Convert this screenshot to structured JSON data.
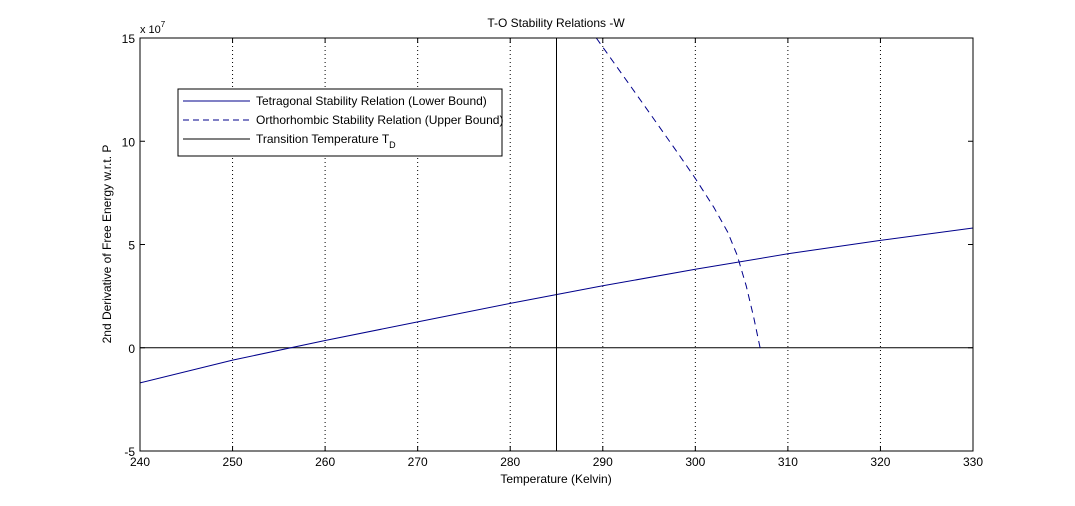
{
  "chart_data": {
    "type": "line",
    "title": "T-O Stability Relations -W",
    "xlabel": "Temperature (Kelvin)",
    "ylabel": "2nd Derivative of Free Energy w.r.t. P",
    "y_multiplier": {
      "base": "x 10",
      "exponent": "7"
    },
    "xlim": [
      240,
      330
    ],
    "ylim": [
      -5,
      15
    ],
    "x_ticks": [
      "240",
      "250",
      "260",
      "270",
      "280",
      "290",
      "300",
      "310",
      "320",
      "330"
    ],
    "y_ticks": [
      "-5",
      "0",
      "5",
      "10",
      "15"
    ],
    "x_grid": true,
    "y_grid": false,
    "legend_position": "top-left",
    "series": [
      {
        "name": "Tetragonal Stability Relation (Lower Bound)",
        "style": "solid",
        "color": "#00008b",
        "x": [
          240,
          250,
          260,
          270,
          280,
          290,
          300,
          310,
          320,
          330
        ],
        "y": [
          -1.7,
          -0.6,
          0.35,
          1.25,
          2.15,
          3.0,
          3.8,
          4.55,
          5.2,
          5.8
        ]
      },
      {
        "name": "Orthorhombic Stability Relation (Upper Bound)",
        "style": "dashed",
        "color": "#00008b",
        "x": [
          289.3,
          292,
          295,
          298,
          300,
          302,
          303.5,
          304.5,
          305.5,
          306.3,
          307
        ],
        "y": [
          15,
          13.3,
          11.4,
          9.5,
          8.2,
          6.8,
          5.6,
          4.5,
          3.0,
          1.5,
          0
        ]
      },
      {
        "name": "Transition Temperature T",
        "name_subscript": "D",
        "style": "solid",
        "color": "#000000",
        "x": [
          285,
          285
        ],
        "y": [
          -5,
          15
        ]
      }
    ],
    "zero_line": {
      "y": 0,
      "color": "#000000"
    }
  }
}
